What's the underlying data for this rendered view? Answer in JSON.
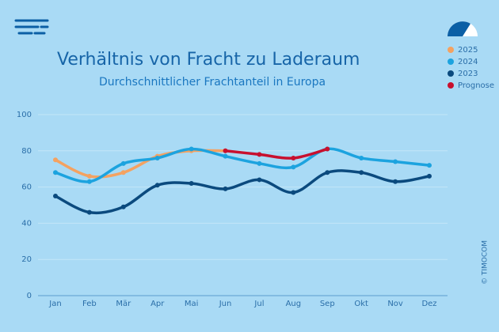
{
  "chart_data": {
    "type": "line",
    "title": "Verhältnis von Fracht zu Laderaum",
    "subtitle": "Durchschnittlicher Frachtanteil in Europa",
    "copyright": "© TIMOCOM",
    "categories": [
      "Jan",
      "Feb",
      "Mär",
      "Apr",
      "Mai",
      "Jun",
      "Jul",
      "Aug",
      "Sep",
      "Okt",
      "Nov",
      "Dez"
    ],
    "series": [
      {
        "name": "2025",
        "color": "#f4a261",
        "values": [
          75,
          66,
          68,
          77,
          80,
          80,
          null,
          null,
          null,
          null,
          null,
          null
        ]
      },
      {
        "name": "2024",
        "color": "#1ca3df",
        "values": [
          68,
          63,
          73,
          76,
          81,
          77,
          73,
          71,
          81,
          76,
          74,
          72
        ]
      },
      {
        "name": "2023",
        "color": "#0b4a7e",
        "values": [
          55,
          46,
          49,
          61,
          62,
          59,
          64,
          57,
          68,
          68,
          63,
          66
        ]
      },
      {
        "name": "Prognose",
        "color": "#c8102e",
        "values": [
          null,
          null,
          null,
          null,
          null,
          80,
          78,
          76,
          81,
          null,
          null,
          null
        ]
      }
    ],
    "ylim": [
      0,
      100
    ],
    "yticks": [
      0,
      20,
      40,
      60,
      80,
      100
    ],
    "grid": true,
    "legend": "top-right"
  }
}
